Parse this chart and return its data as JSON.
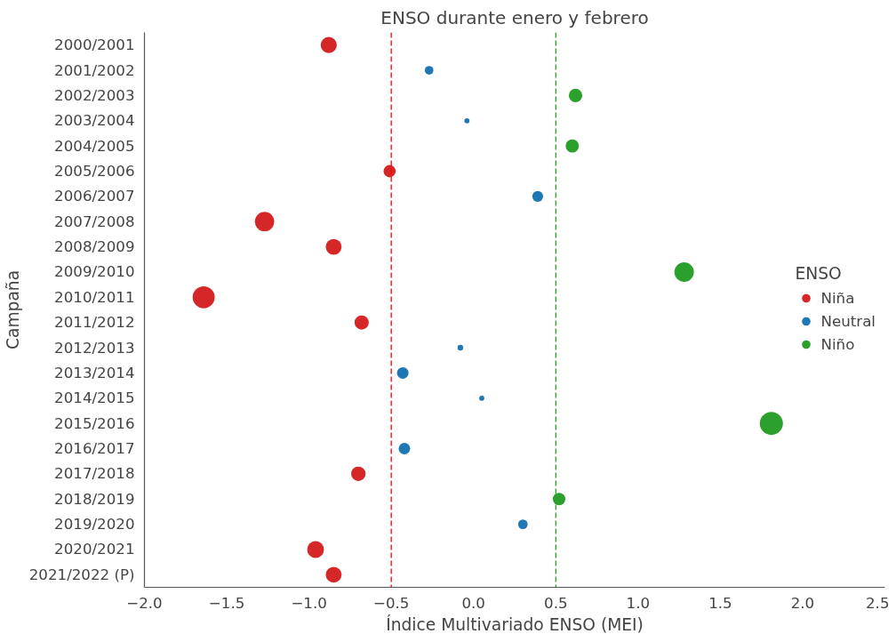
{
  "chart_data": {
    "type": "bubble",
    "orientation": "horizontal",
    "title": "ENSO durante enero y febrero",
    "xlabel": "Índice Multivariado ENSO (MEI)",
    "ylabel": "Campaña",
    "legend_title": "ENSO",
    "categories": [
      "2000/2001",
      "2001/2002",
      "2002/2003",
      "2003/2004",
      "2004/2005",
      "2005/2006",
      "2006/2007",
      "2007/2008",
      "2008/2009",
      "2009/2010",
      "2010/2011",
      "2011/2012",
      "2012/2013",
      "2013/2014",
      "2014/2015",
      "2015/2016",
      "2016/2017",
      "2017/2018",
      "2018/2019",
      "2019/2020",
      "2020/2021",
      "2021/2022 (P)"
    ],
    "series": [
      {
        "name": "Niña",
        "color": "#d62728",
        "values": [
          -0.88,
          null,
          null,
          null,
          null,
          -0.51,
          null,
          -1.27,
          -0.85,
          null,
          -1.64,
          -0.68,
          null,
          null,
          null,
          null,
          null,
          -0.7,
          null,
          null,
          -0.96,
          -0.85
        ],
        "sizes": [
          0.49,
          null,
          null,
          null,
          null,
          0.28,
          null,
          0.7,
          0.47,
          null,
          0.91,
          0.38,
          null,
          null,
          null,
          null,
          null,
          0.39,
          null,
          null,
          0.53,
          0.47
        ]
      },
      {
        "name": "Neutral",
        "color": "#1f77b4",
        "values": [
          null,
          -0.27,
          null,
          -0.04,
          null,
          null,
          0.39,
          null,
          null,
          null,
          null,
          null,
          -0.08,
          -0.43,
          0.05,
          null,
          -0.42,
          null,
          null,
          0.3,
          null,
          null
        ],
        "sizes": [
          null,
          0.14,
          null,
          0.05,
          null,
          null,
          0.22,
          null,
          null,
          null,
          null,
          null,
          0.06,
          0.25,
          0.05,
          null,
          0.25,
          null,
          null,
          0.17,
          null,
          null
        ]
      },
      {
        "name": "Niño",
        "color": "#2ca02c",
        "values": [
          null,
          null,
          0.62,
          null,
          0.6,
          null,
          null,
          null,
          null,
          1.28,
          null,
          null,
          null,
          null,
          null,
          1.81,
          null,
          null,
          0.52,
          null,
          null,
          null
        ],
        "sizes": [
          null,
          null,
          0.34,
          null,
          0.33,
          null,
          null,
          null,
          null,
          0.71,
          null,
          null,
          null,
          null,
          null,
          1.0,
          null,
          null,
          0.29,
          null,
          null,
          null
        ]
      }
    ],
    "xlim": [
      -2.0,
      2.5
    ],
    "xticks": [
      {
        "value": -2.0,
        "label": "−2.0"
      },
      {
        "value": -1.5,
        "label": "−1.5"
      },
      {
        "value": -1.0,
        "label": "−1.0"
      },
      {
        "value": -0.5,
        "label": "−0.5"
      },
      {
        "value": 0,
        "label": "0.0"
      },
      {
        "value": 0.5,
        "label": "0.5"
      },
      {
        "value": 1.0,
        "label": "1.0"
      },
      {
        "value": 1.5,
        "label": "1.5"
      },
      {
        "value": 2.0,
        "label": "2.0"
      },
      {
        "value": 2.5,
        "label": "2.5"
      }
    ],
    "ref_lines": [
      {
        "axis": "x",
        "value": -0.5,
        "color": "#ff0000",
        "line_style": "dashed"
      },
      {
        "axis": "x",
        "value": 0.5,
        "color": "#2ca02c",
        "line_style": "dashed"
      }
    ],
    "legend": "right",
    "grid": false,
    "marker": "circle"
  }
}
